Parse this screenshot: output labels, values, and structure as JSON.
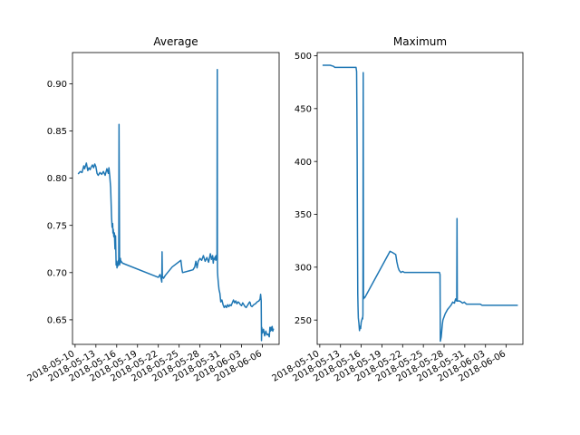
{
  "chart_data": [
    {
      "type": "line",
      "title": "Average",
      "xlabel": "",
      "ylabel": "",
      "x_type": "date",
      "xlim": [
        "2018-05-09T15:00",
        "2018-06-08T10:00"
      ],
      "ylim": [
        0.624,
        0.933
      ],
      "x_ticks": [
        "2018-05-10",
        "2018-05-13",
        "2018-05-16",
        "2018-05-19",
        "2018-05-22",
        "2018-05-25",
        "2018-05-28",
        "2018-05-31",
        "2018-06-03",
        "2018-06-06"
      ],
      "y_ticks": [
        0.65,
        0.7,
        0.75,
        0.8,
        0.85,
        0.9
      ],
      "y_tick_labels": [
        "0.65",
        "0.70",
        "0.75",
        "0.80",
        "0.85",
        "0.90"
      ],
      "grid": false,
      "color": "#1f77b4",
      "series": [
        {
          "x": [
            "2018-05-10T12:00",
            "2018-05-10T18:00",
            "2018-05-11T00:00",
            "2018-05-11T06:00",
            "2018-05-11T09:00",
            "2018-05-11T15:00",
            "2018-05-11T20:00",
            "2018-05-12T00:00",
            "2018-05-12T04:00",
            "2018-05-12T08:00",
            "2018-05-12T12:00",
            "2018-05-12T16:00",
            "2018-05-12T20:00",
            "2018-05-13T00:00",
            "2018-05-13T04:00",
            "2018-05-13T08:00",
            "2018-05-13T14:00",
            "2018-05-13T20:00",
            "2018-05-14T02:00",
            "2018-05-14T08:00",
            "2018-05-14T14:00",
            "2018-05-14T19:00",
            "2018-05-14T21:00",
            "2018-05-15T00:00",
            "2018-05-15T03:00",
            "2018-05-15T06:00",
            "2018-05-15T08:00",
            "2018-05-15T10:00",
            "2018-05-15T11:00",
            "2018-05-15T12:00",
            "2018-05-15T14:00",
            "2018-05-15T16:00",
            "2018-05-15T18:00",
            "2018-05-15T20:00",
            "2018-05-15T22:00",
            "2018-05-16T00:00",
            "2018-05-16T01:00",
            "2018-05-16T02:00",
            "2018-05-16T04:00",
            "2018-05-16T06:00",
            "2018-05-16T07:00",
            "2018-05-16T08:00",
            "2018-05-16T10:00",
            "2018-05-16T11:00",
            "2018-05-16T12:00",
            "2018-05-16T13:00",
            "2018-05-16T13:30",
            "2018-05-16T14:00",
            "2018-05-16T15:00",
            "2018-05-16T18:00",
            "2018-05-16T20:00",
            "2018-05-22T00:00",
            "2018-05-22T06:00",
            "2018-05-22T10:00",
            "2018-05-22T12:00",
            "2018-05-22T13:00",
            "2018-05-22T14:00",
            "2018-05-22T18:00",
            "2018-05-23T00:00",
            "2018-05-23T08:00",
            "2018-05-23T16:00",
            "2018-05-24T00:00",
            "2018-05-25T06:00",
            "2018-05-25T10:00",
            "2018-05-25T12:00",
            "2018-05-26T12:00",
            "2018-05-27T00:00",
            "2018-05-27T06:00",
            "2018-05-27T10:00",
            "2018-05-27T14:00",
            "2018-05-27T18:00",
            "2018-05-28T00:00",
            "2018-05-28T06:00",
            "2018-05-28T12:00",
            "2018-05-28T18:00",
            "2018-05-29T00:00",
            "2018-05-29T06:00",
            "2018-05-29T12:00",
            "2018-05-29T16:00",
            "2018-05-29T20:00",
            "2018-05-29T22:00",
            "2018-05-30T00:00",
            "2018-05-30T02:00",
            "2018-05-30T05:00",
            "2018-05-30T07:00",
            "2018-05-30T08:00",
            "2018-05-30T09:00",
            "2018-05-30T10:00",
            "2018-05-30T11:00",
            "2018-05-30T12:00",
            "2018-05-30T12:30",
            "2018-05-30T13:00",
            "2018-05-30T14:00",
            "2018-05-30T16:00",
            "2018-05-30T18:00",
            "2018-05-30T21:00",
            "2018-05-31T00:00",
            "2018-05-31T04:00",
            "2018-05-31T08:00",
            "2018-05-31T12:00",
            "2018-05-31T16:00",
            "2018-05-31T20:00",
            "2018-06-01T00:00",
            "2018-06-01T04:00",
            "2018-06-01T08:00",
            "2018-06-01T12:00",
            "2018-06-01T16:00",
            "2018-06-01T20:00",
            "2018-06-02T00:00",
            "2018-06-02T04:00",
            "2018-06-02T08:00",
            "2018-06-02T12:00",
            "2018-06-02T16:00",
            "2018-06-02T20:00",
            "2018-06-03T00:00",
            "2018-06-03T04:00",
            "2018-06-03T08:00",
            "2018-06-03T12:00",
            "2018-06-03T16:00",
            "2018-06-03T20:00",
            "2018-06-04T00:00",
            "2018-06-04T04:00",
            "2018-06-04T06:00",
            "2018-06-04T08:00",
            "2018-06-04T12:00",
            "2018-06-04T18:00",
            "2018-06-05T00:00",
            "2018-06-05T06:00",
            "2018-06-05T12:00",
            "2018-06-05T16:00",
            "2018-06-05T18:00",
            "2018-06-05T20:00",
            "2018-06-05T21:00",
            "2018-06-05T22:00",
            "2018-06-06T00:00",
            "2018-06-06T04:00",
            "2018-06-06T08:00",
            "2018-06-06T12:00",
            "2018-06-06T16:00",
            "2018-06-06T20:00",
            "2018-06-07T00:00",
            "2018-06-07T02:00",
            "2018-06-07T04:00",
            "2018-06-07T06:00",
            "2018-06-07T08:00",
            "2018-06-07T10:00",
            "2018-06-07T12:00",
            "2018-06-07T14:00"
          ],
          "y": [
            0.805,
            0.807,
            0.806,
            0.813,
            0.81,
            0.816,
            0.808,
            0.811,
            0.809,
            0.812,
            0.814,
            0.811,
            0.815,
            0.812,
            0.805,
            0.803,
            0.806,
            0.804,
            0.807,
            0.803,
            0.81,
            0.805,
            0.811,
            0.802,
            0.79,
            0.76,
            0.748,
            0.752,
            0.742,
            0.746,
            0.738,
            0.742,
            0.725,
            0.739,
            0.708,
            0.712,
            0.705,
            0.71,
            0.707,
            0.713,
            0.709,
            0.857,
            0.708,
            0.712,
            0.71,
            0.715,
            0.711,
            0.713,
            0.712,
            0.711,
            0.71,
            0.695,
            0.698,
            0.693,
            0.69,
            0.722,
            0.696,
            0.694,
            0.697,
            0.7,
            0.703,
            0.706,
            0.713,
            0.703,
            0.7,
            0.702,
            0.703,
            0.706,
            0.712,
            0.705,
            0.712,
            0.715,
            0.713,
            0.718,
            0.712,
            0.716,
            0.711,
            0.72,
            0.714,
            0.718,
            0.71,
            0.715,
            0.714,
            0.717,
            0.713,
            0.718,
            0.715,
            0.714,
            0.716,
            0.915,
            0.706,
            0.7,
            0.695,
            0.688,
            0.682,
            0.678,
            0.669,
            0.671,
            0.666,
            0.663,
            0.665,
            0.663,
            0.666,
            0.664,
            0.666,
            0.665,
            0.668,
            0.671,
            0.668,
            0.67,
            0.667,
            0.669,
            0.668,
            0.666,
            0.665,
            0.668,
            0.666,
            0.664,
            0.663,
            0.665,
            0.667,
            0.669,
            0.668,
            0.665,
            0.664,
            0.666,
            0.667,
            0.669,
            0.67,
            0.672,
            0.677,
            0.67,
            0.628,
            0.642,
            0.636,
            0.64,
            0.633,
            0.638,
            0.634,
            0.635,
            0.632,
            0.642,
            0.638,
            0.642,
            0.639,
            0.643,
            0.638,
            0.64
          ]
        }
      ]
    },
    {
      "type": "line",
      "title": "Maximum",
      "xlabel": "",
      "ylabel": "",
      "x_type": "date",
      "xlim": [
        "2018-05-09T15:00",
        "2018-06-08T10:00"
      ],
      "ylim": [
        227,
        503
      ],
      "x_ticks": [
        "2018-05-10",
        "2018-05-13",
        "2018-05-16",
        "2018-05-19",
        "2018-05-22",
        "2018-05-25",
        "2018-05-28",
        "2018-05-31",
        "2018-06-03",
        "2018-06-06"
      ],
      "y_ticks": [
        250,
        300,
        350,
        400,
        450,
        500
      ],
      "y_tick_labels": [
        "250",
        "300",
        "350",
        "400",
        "450",
        "500"
      ],
      "grid": false,
      "color": "#1f77b4",
      "series": [
        {
          "x": [
            "2018-05-10T12:00",
            "2018-05-11T12:00",
            "2018-05-12T00:00",
            "2018-05-12T04:00",
            "2018-05-15T06:00",
            "2018-05-15T08:00",
            "2018-05-15T09:00",
            "2018-05-15T10:00",
            "2018-05-15T11:00",
            "2018-05-15T12:00",
            "2018-05-15T13:00",
            "2018-05-15T14:00",
            "2018-05-15T16:00",
            "2018-05-15T18:00",
            "2018-05-15T20:00",
            "2018-05-15T22:00",
            "2018-05-16T00:00",
            "2018-05-16T02:00",
            "2018-05-16T04:00",
            "2018-05-16T05:00",
            "2018-05-16T06:00",
            "2018-05-16T07:00",
            "2018-05-16T08:00",
            "2018-05-16T09:00",
            "2018-05-16T12:00",
            "2018-05-16T16:00",
            "2018-05-20T04:00",
            "2018-05-20T12:00",
            "2018-05-21T00:00",
            "2018-05-21T04:00",
            "2018-05-21T08:00",
            "2018-05-21T12:00",
            "2018-05-21T18:00",
            "2018-05-22T00:00",
            "2018-05-22T06:00",
            "2018-05-27T08:00",
            "2018-05-27T10:00",
            "2018-05-27T11:00",
            "2018-05-27T14:00",
            "2018-05-27T16:00",
            "2018-05-27T18:00",
            "2018-05-27T20:00",
            "2018-05-28T00:00",
            "2018-05-28T04:00",
            "2018-05-28T08:00",
            "2018-05-28T12:00",
            "2018-05-28T18:00",
            "2018-05-29T00:00",
            "2018-05-29T06:00",
            "2018-05-29T12:00",
            "2018-05-29T16:00",
            "2018-05-29T20:00",
            "2018-05-29T21:00",
            "2018-05-29T22:00",
            "2018-05-30T06:00",
            "2018-05-30T12:00",
            "2018-05-30T16:00",
            "2018-05-30T22:00",
            "2018-05-31T06:00",
            "2018-06-01T12:00",
            "2018-06-02T06:00",
            "2018-06-02T12:00",
            "2018-06-07T14:00"
          ],
          "y": [
            491,
            491,
            490,
            489,
            489,
            485,
            450,
            400,
            330,
            275,
            262,
            252,
            247,
            240,
            244,
            242,
            248,
            250,
            252,
            251,
            255,
            484,
            270,
            272,
            271,
            273,
            315,
            314,
            312,
            305,
            300,
            297,
            295,
            296,
            295,
            295,
            293,
            230,
            234,
            240,
            246,
            250,
            253,
            256,
            258,
            260,
            262,
            264,
            267,
            266,
            270,
            268,
            346,
            268,
            268,
            267,
            266,
            267,
            265,
            265,
            265,
            264,
            264
          ]
        }
      ]
    }
  ]
}
